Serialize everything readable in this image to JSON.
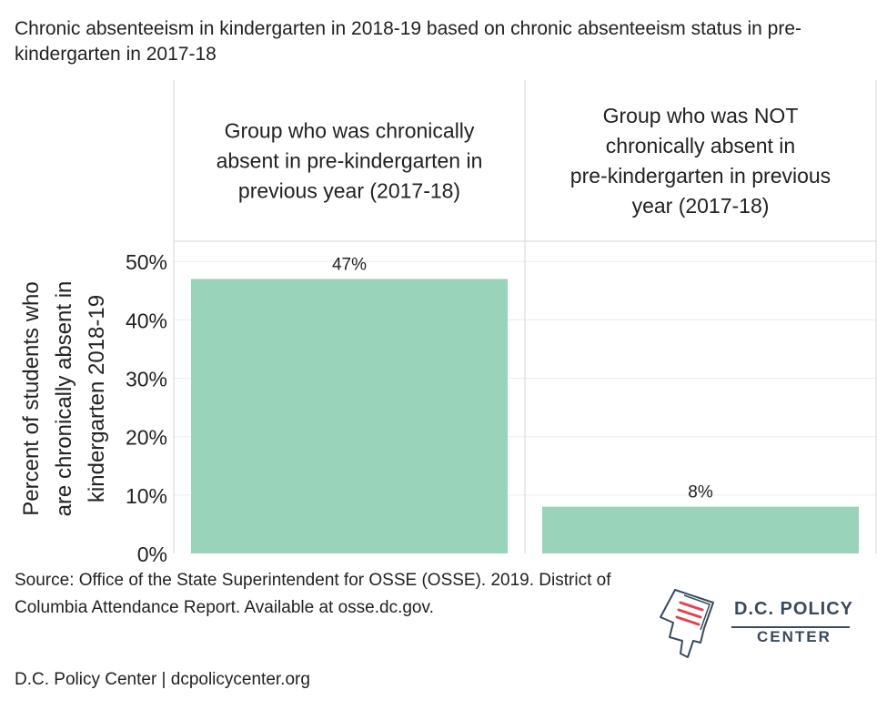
{
  "title": "Chronic absenteeism in kindergarten in 2018-19 based on chronic absenteeism status in pre-kindergarten in 2017-18",
  "source": "Source: Office of the State Superintendent for OSSE (OSSE). 2019. District of Columbia Attendance Report. Available at osse.dc.gov.",
  "footer": "D.C. Policy Center | dcpolicycenter.org",
  "logo": {
    "line1": "D.C. POLICY",
    "line2": "CENTER"
  },
  "colors": {
    "bar": "#99d3b9",
    "grid": "#ebebeb",
    "border": "#d4d4d4"
  },
  "chart_data": {
    "type": "bar",
    "categories": [
      "Group who was chronically absent in pre-kindergarten in previous year (2017-18)",
      "Group who was NOT chronically absent in pre-kindergarten in previous year (2017-18)"
    ],
    "category_lines": [
      [
        "Group who was chronically",
        "absent in pre-kindergarten in",
        "previous year (2017-18)"
      ],
      [
        "Group who was NOT",
        "chronically absent in",
        "pre-kindergarten in previous",
        "year (2017-18)"
      ]
    ],
    "values": [
      47,
      8
    ],
    "data_labels": [
      "47%",
      "8%"
    ],
    "ylabel_lines": [
      "Percent of students who",
      "are chronically absent in",
      "kindergarten 2018-19"
    ],
    "yticks": [
      0,
      10,
      20,
      30,
      40,
      50
    ],
    "ytick_labels": [
      "0%",
      "10%",
      "20%",
      "30%",
      "40%",
      "50%"
    ],
    "ylim": [
      0,
      53
    ],
    "grid": true
  }
}
